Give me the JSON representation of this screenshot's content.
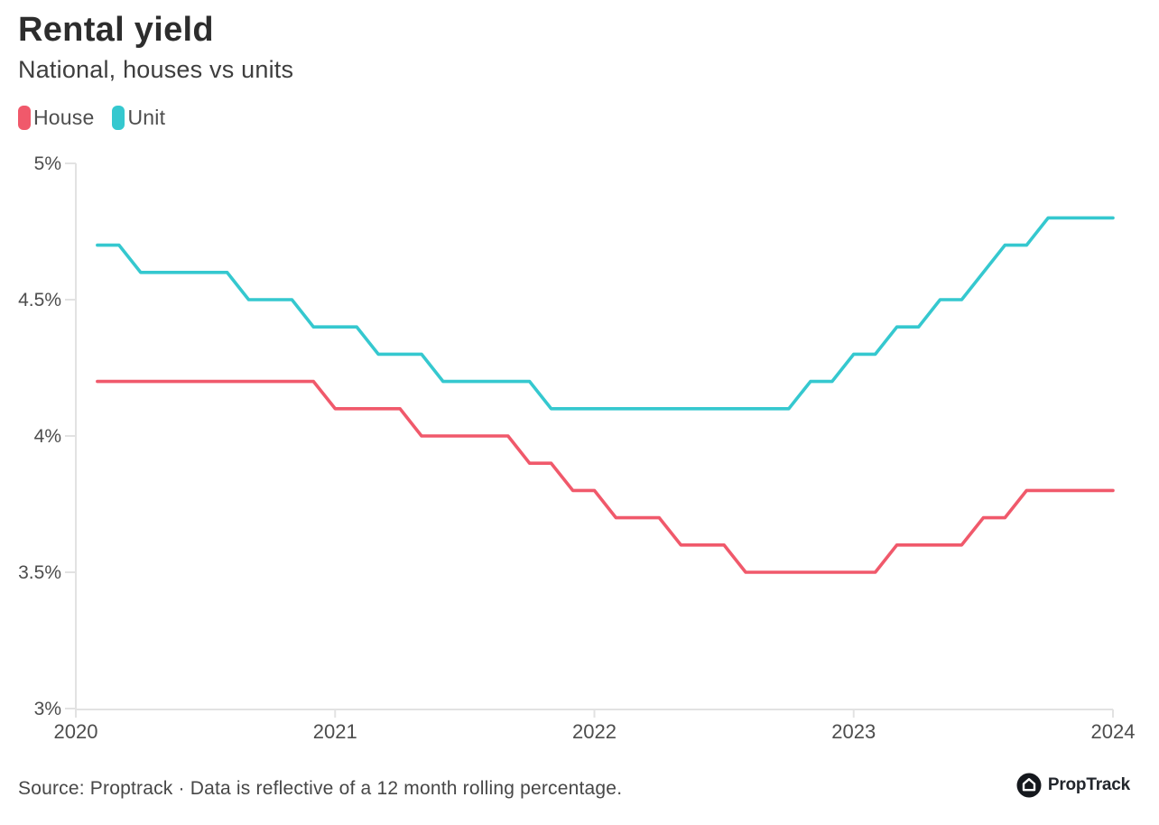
{
  "header": {
    "title": "Rental yield",
    "subtitle": "National, houses vs units"
  },
  "legend": [
    {
      "label": "House",
      "color": "#f0596b"
    },
    {
      "label": "Unit",
      "color": "#35c8cf"
    }
  ],
  "footer": {
    "source_text": "Source: Proptrack · Data is reflective of a 12 month rolling percentage.",
    "brand": "PropTrack",
    "brand_icon": "house-in-circle-icon",
    "brand_icon_color": "#15181d"
  },
  "chart_data": {
    "type": "line",
    "title": "Rental yield",
    "subtitle": "National, houses vs units",
    "xlabel": "",
    "ylabel": "",
    "grid": false,
    "legend_position": "top-left",
    "ylim": [
      3,
      5
    ],
    "xlim": [
      "2020-01",
      "2024-01"
    ],
    "y_ticks": [
      {
        "value": 5,
        "label": "5%"
      },
      {
        "value": 4.5,
        "label": "4.5%"
      },
      {
        "value": 4,
        "label": "4%"
      },
      {
        "value": 3.5,
        "label": "3.5%"
      },
      {
        "value": 3,
        "label": "3%"
      }
    ],
    "x_ticks": [
      {
        "month": "2020-01",
        "label": "2020"
      },
      {
        "month": "2021-01",
        "label": "2021"
      },
      {
        "month": "2022-01",
        "label": "2022"
      },
      {
        "month": "2023-01",
        "label": "2023"
      },
      {
        "month": "2024-01",
        "label": "2024"
      }
    ],
    "x": [
      "2020-02",
      "2020-03",
      "2020-04",
      "2020-05",
      "2020-06",
      "2020-07",
      "2020-08",
      "2020-09",
      "2020-10",
      "2020-11",
      "2020-12",
      "2021-01",
      "2021-02",
      "2021-03",
      "2021-04",
      "2021-05",
      "2021-06",
      "2021-07",
      "2021-08",
      "2021-09",
      "2021-10",
      "2021-11",
      "2021-12",
      "2022-01",
      "2022-02",
      "2022-03",
      "2022-04",
      "2022-05",
      "2022-06",
      "2022-07",
      "2022-08",
      "2022-09",
      "2022-10",
      "2022-11",
      "2022-12",
      "2023-01",
      "2023-02",
      "2023-03",
      "2023-04",
      "2023-05",
      "2023-06",
      "2023-07",
      "2023-08",
      "2023-09",
      "2023-10",
      "2023-11",
      "2023-12",
      "2024-01"
    ],
    "series": [
      {
        "name": "House",
        "color": "#f0596b",
        "unit": "%",
        "values": [
          4.2,
          4.2,
          4.2,
          4.2,
          4.2,
          4.2,
          4.2,
          4.2,
          4.2,
          4.2,
          4.2,
          4.1,
          4.1,
          4.1,
          4.1,
          4.0,
          4.0,
          4.0,
          4.0,
          4.0,
          3.9,
          3.9,
          3.8,
          3.8,
          3.7,
          3.7,
          3.7,
          3.6,
          3.6,
          3.6,
          3.5,
          3.5,
          3.5,
          3.5,
          3.5,
          3.5,
          3.5,
          3.6,
          3.6,
          3.6,
          3.6,
          3.7,
          3.7,
          3.8,
          3.8,
          3.8,
          3.8,
          3.8
        ]
      },
      {
        "name": "Unit",
        "color": "#35c8cf",
        "unit": "%",
        "values": [
          4.7,
          4.7,
          4.6,
          4.6,
          4.6,
          4.6,
          4.6,
          4.5,
          4.5,
          4.5,
          4.4,
          4.4,
          4.4,
          4.3,
          4.3,
          4.3,
          4.2,
          4.2,
          4.2,
          4.2,
          4.2,
          4.1,
          4.1,
          4.1,
          4.1,
          4.1,
          4.1,
          4.1,
          4.1,
          4.1,
          4.1,
          4.1,
          4.1,
          4.2,
          4.2,
          4.3,
          4.3,
          4.4,
          4.4,
          4.5,
          4.5,
          4.6,
          4.7,
          4.7,
          4.8,
          4.8,
          4.8,
          4.8
        ]
      }
    ]
  }
}
